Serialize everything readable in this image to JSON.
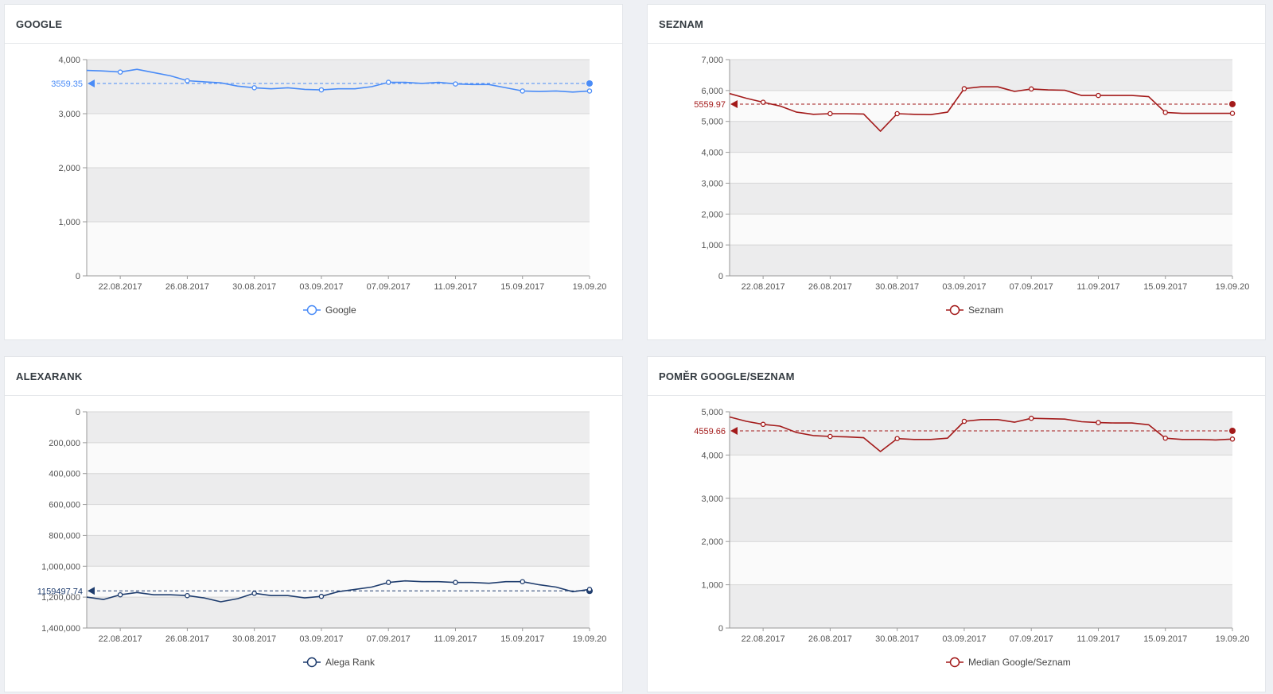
{
  "panels": [
    {
      "id": "google",
      "title": "GOOGLE",
      "chart_data": {
        "type": "line",
        "x": [
          "20.08.2017",
          "21.08.2017",
          "22.08.2017",
          "23.08.2017",
          "24.08.2017",
          "25.08.2017",
          "26.08.2017",
          "27.08.2017",
          "28.08.2017",
          "29.08.2017",
          "30.08.2017",
          "31.08.2017",
          "01.09.2017",
          "02.09.2017",
          "03.09.2017",
          "04.09.2017",
          "05.09.2017",
          "06.09.2017",
          "07.09.2017",
          "08.09.2017",
          "09.09.2017",
          "10.09.2017",
          "11.09.2017",
          "12.09.2017",
          "13.09.2017",
          "14.09.2017",
          "15.09.2017",
          "16.09.2017",
          "17.09.2017",
          "18.09.2017",
          "19.09.2017"
        ],
        "tick_labels": [
          "22.08.2017",
          "26.08.2017",
          "30.08.2017",
          "03.09.2017",
          "07.09.2017",
          "11.09.2017",
          "15.09.2017",
          "19.09.20"
        ],
        "series": [
          {
            "name": "Google",
            "color": "#4a8cf7",
            "values": [
              3800,
              3790,
              3770,
              3820,
              3760,
              3700,
              3610,
              3590,
              3570,
              3510,
              3480,
              3460,
              3480,
              3450,
              3440,
              3460,
              3460,
              3500,
              3580,
              3580,
              3560,
              3580,
              3550,
              3540,
              3540,
              3480,
              3420,
              3410,
              3420,
              3400,
              3420
            ]
          }
        ],
        "reference": {
          "label": "3559.35",
          "value": 3559.35
        },
        "yticks": [
          "4,000",
          "3,000",
          "2,000",
          "1,000",
          "0"
        ],
        "ylim": [
          0,
          4000
        ],
        "reversed": false,
        "grid": true,
        "legend": "bottom-center"
      }
    },
    {
      "id": "seznam",
      "title": "SEZNAM",
      "chart_data": {
        "type": "line",
        "x": [
          "20.08.2017",
          "21.08.2017",
          "22.08.2017",
          "23.08.2017",
          "24.08.2017",
          "25.08.2017",
          "26.08.2017",
          "27.08.2017",
          "28.08.2017",
          "29.08.2017",
          "30.08.2017",
          "31.08.2017",
          "01.09.2017",
          "02.09.2017",
          "03.09.2017",
          "04.09.2017",
          "05.09.2017",
          "06.09.2017",
          "07.09.2017",
          "08.09.2017",
          "09.09.2017",
          "10.09.2017",
          "11.09.2017",
          "12.09.2017",
          "13.09.2017",
          "14.09.2017",
          "15.09.2017",
          "16.09.2017",
          "17.09.2017",
          "18.09.2017",
          "19.09.2017"
        ],
        "tick_labels": [
          "22.08.2017",
          "26.08.2017",
          "30.08.2017",
          "03.09.2017",
          "07.09.2017",
          "11.09.2017",
          "15.09.2017",
          "19.09.20"
        ],
        "series": [
          {
            "name": "Seznam",
            "color": "#a31a1a",
            "values": [
              5900,
              5750,
              5620,
              5500,
              5300,
              5230,
              5250,
              5250,
              5240,
              4680,
              5250,
              5230,
              5220,
              5300,
              6060,
              6120,
              6120,
              5970,
              6050,
              6020,
              6010,
              5840,
              5840,
              5840,
              5840,
              5800,
              5290,
              5260,
              5260,
              5260,
              5260
            ]
          }
        ],
        "reference": {
          "label": "5559.97",
          "value": 5559.97
        },
        "yticks": [
          "7,000",
          "6,000",
          "5,000",
          "4,000",
          "3,000",
          "2,000",
          "1,000",
          "0"
        ],
        "ylim": [
          0,
          7000
        ],
        "reversed": false,
        "grid": true,
        "legend": "bottom-center"
      }
    },
    {
      "id": "alexa",
      "title": "ALEXARANK",
      "chart_data": {
        "type": "line",
        "x": [
          "20.08.2017",
          "21.08.2017",
          "22.08.2017",
          "23.08.2017",
          "24.08.2017",
          "25.08.2017",
          "26.08.2017",
          "27.08.2017",
          "28.08.2017",
          "29.08.2017",
          "30.08.2017",
          "31.08.2017",
          "01.09.2017",
          "02.09.2017",
          "03.09.2017",
          "04.09.2017",
          "05.09.2017",
          "06.09.2017",
          "07.09.2017",
          "08.09.2017",
          "09.09.2017",
          "10.09.2017",
          "11.09.2017",
          "12.09.2017",
          "13.09.2017",
          "14.09.2017",
          "15.09.2017",
          "16.09.2017",
          "17.09.2017",
          "18.09.2017",
          "19.09.2017"
        ],
        "tick_labels": [
          "22.08.2017",
          "26.08.2017",
          "30.08.2017",
          "03.09.2017",
          "07.09.2017",
          "11.09.2017",
          "15.09.2017",
          "19.09.20"
        ],
        "series": [
          {
            "name": "Alega Rank",
            "color": "#1f3d6e",
            "values": [
              1200000,
              1215000,
              1185000,
              1170000,
              1185000,
              1185000,
              1190000,
              1205000,
              1230000,
              1210000,
              1175000,
              1190000,
              1190000,
              1205000,
              1195000,
              1165000,
              1150000,
              1135000,
              1105000,
              1095000,
              1100000,
              1100000,
              1105000,
              1105000,
              1110000,
              1100000,
              1100000,
              1120000,
              1135000,
              1165000,
              1150000
            ]
          }
        ],
        "reference": {
          "label": "1159497.74",
          "value": 1159497.74
        },
        "yticks": [
          "0",
          "200,000",
          "400,000",
          "600,000",
          "800,000",
          "1,000,000",
          "1,200,000",
          "1,400,000"
        ],
        "ylim": [
          0,
          1400000
        ],
        "reversed": true,
        "grid": true,
        "legend": "bottom-center"
      }
    },
    {
      "id": "ratio",
      "title": "POMĚR GOOGLE/SEZNAM",
      "chart_data": {
        "type": "line",
        "x": [
          "20.08.2017",
          "21.08.2017",
          "22.08.2017",
          "23.08.2017",
          "24.08.2017",
          "25.08.2017",
          "26.08.2017",
          "27.08.2017",
          "28.08.2017",
          "29.08.2017",
          "30.08.2017",
          "31.08.2017",
          "01.09.2017",
          "02.09.2017",
          "03.09.2017",
          "04.09.2017",
          "05.09.2017",
          "06.09.2017",
          "07.09.2017",
          "08.09.2017",
          "09.09.2017",
          "10.09.2017",
          "11.09.2017",
          "12.09.2017",
          "13.09.2017",
          "14.09.2017",
          "15.09.2017",
          "16.09.2017",
          "17.09.2017",
          "18.09.2017",
          "19.09.2017"
        ],
        "tick_labels": [
          "22.08.2017",
          "26.08.2017",
          "30.08.2017",
          "03.09.2017",
          "07.09.2017",
          "11.09.2017",
          "15.09.2017",
          "19.09.20"
        ],
        "series": [
          {
            "name": "Median Google/Seznam",
            "color": "#a31a1a",
            "values": [
              4880,
              4780,
              4710,
              4670,
              4520,
              4450,
              4430,
              4420,
              4400,
              4080,
              4380,
              4360,
              4360,
              4390,
              4780,
              4820,
              4820,
              4760,
              4850,
              4840,
              4830,
              4770,
              4750,
              4740,
              4740,
              4700,
              4390,
              4360,
              4360,
              4350,
              4370
            ]
          }
        ],
        "reference": {
          "label": "4559.66",
          "value": 4559.66
        },
        "yticks": [
          "5,000",
          "4,000",
          "3,000",
          "2,000",
          "1,000",
          "0"
        ],
        "ylim": [
          0,
          5000
        ],
        "reversed": false,
        "grid": true,
        "legend": "bottom-center"
      }
    }
  ]
}
